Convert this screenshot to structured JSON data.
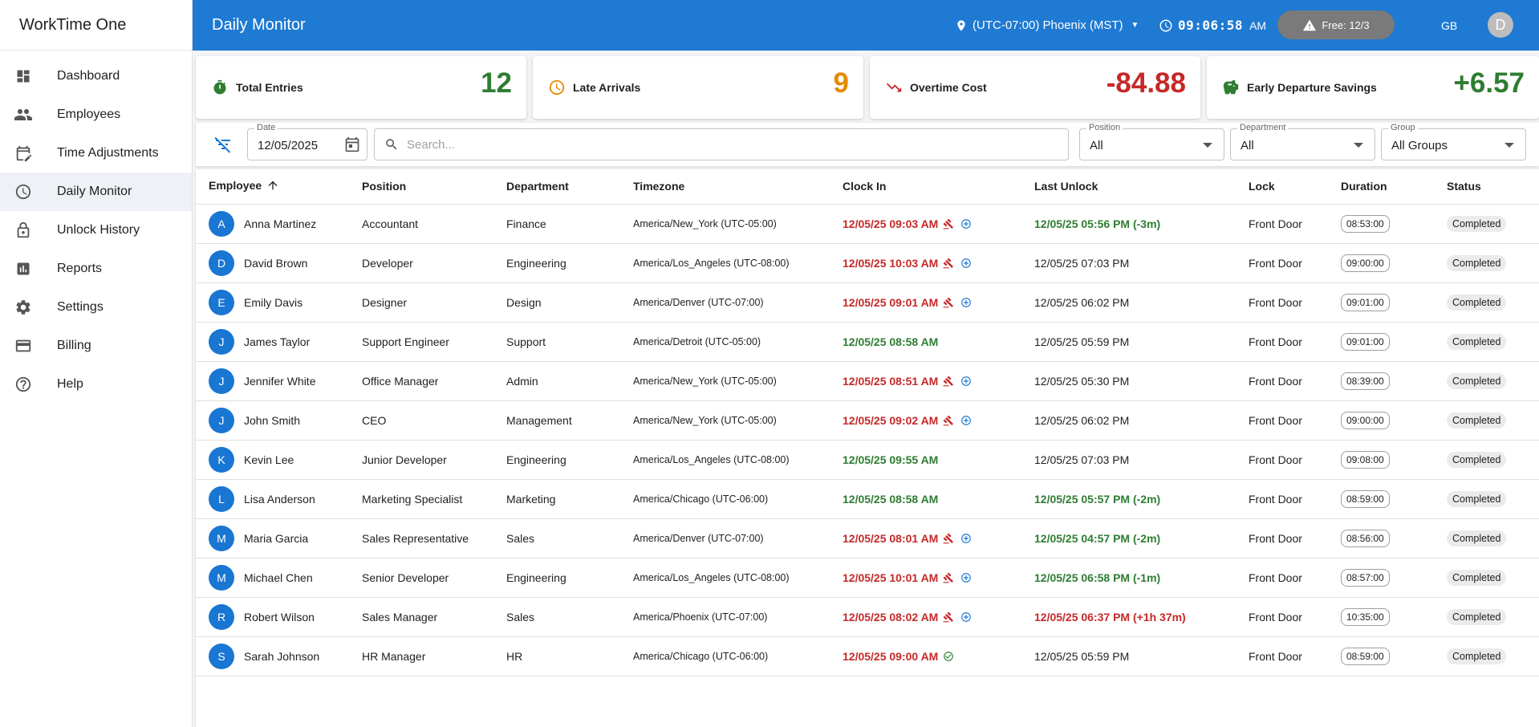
{
  "app": {
    "name": "WorkTime One"
  },
  "sidebar": {
    "items": [
      {
        "label": "Dashboard",
        "icon": "dashboard-icon"
      },
      {
        "label": "Employees",
        "icon": "people-icon"
      },
      {
        "label": "Time Adjustments",
        "icon": "edit-calendar-icon"
      },
      {
        "label": "Daily Monitor",
        "icon": "clock-icon"
      },
      {
        "label": "Unlock History",
        "icon": "lock-icon"
      },
      {
        "label": "Reports",
        "icon": "bar-chart-icon"
      },
      {
        "label": "Settings",
        "icon": "gear-icon"
      },
      {
        "label": "Billing",
        "icon": "credit-card-icon"
      },
      {
        "label": "Help",
        "icon": "help-icon"
      }
    ]
  },
  "header": {
    "title": "Daily Monitor",
    "timezone": "(UTC-07:00) Phoenix (MST)",
    "clock_time": "09:06:58",
    "clock_ampm": "AM",
    "plan_badge": "Free: 12/3",
    "user_initials": "GB",
    "avatar_letter": "D"
  },
  "stats": [
    {
      "label": "Total Entries",
      "value": "12",
      "color": "#2e7d32",
      "icon": "timer-icon"
    },
    {
      "label": "Late Arrivals",
      "value": "9",
      "color": "#e68a00",
      "icon": "clock-outline-icon"
    },
    {
      "label": "Overtime Cost",
      "value": "-84.88",
      "color": "#c62828",
      "icon": "trending-down-icon"
    },
    {
      "label": "Early Departure Savings",
      "value": "+6.57",
      "color": "#2e7d32",
      "icon": "piggy-bank-icon"
    }
  ],
  "filters": {
    "date_label": "Date",
    "date_value": "12/05/2025",
    "search_placeholder": "Search...",
    "position_label": "Position",
    "position_value": "All",
    "department_label": "Department",
    "department_value": "All",
    "group_label": "Group",
    "group_value": "All Groups"
  },
  "table": {
    "columns": [
      "Employee",
      "Position",
      "Department",
      "Timezone",
      "Clock In",
      "Last Unlock",
      "Lock",
      "Duration",
      "Status"
    ],
    "rows": [
      {
        "initial": "A",
        "name": "Anna Martinez",
        "position": "Accountant",
        "department": "Finance",
        "tz": "America/New_York",
        "tz_offset": "(UTC-05:00)",
        "clock_in": "12/05/25 09:03 AM",
        "clock_in_state": "late",
        "clock_in_icons": "gavel+add",
        "last_unlock": "12/05/25 05:56 PM (-3m)",
        "last_unlock_state": "early",
        "lock": "Front Door",
        "duration": "08:53:00",
        "status": "Completed"
      },
      {
        "initial": "D",
        "name": "David Brown",
        "position": "Developer",
        "department": "Engineering",
        "tz": "America/Los_Angeles",
        "tz_offset": "(UTC-08:00)",
        "clock_in": "12/05/25 10:03 AM",
        "clock_in_state": "late",
        "clock_in_icons": "gavel+add",
        "last_unlock": "12/05/25 07:03 PM",
        "last_unlock_state": "normal",
        "lock": "Front Door",
        "duration": "09:00:00",
        "status": "Completed"
      },
      {
        "initial": "E",
        "name": "Emily Davis",
        "position": "Designer",
        "department": "Design",
        "tz": "America/Denver",
        "tz_offset": "(UTC-07:00)",
        "clock_in": "12/05/25 09:01 AM",
        "clock_in_state": "late",
        "clock_in_icons": "gavel+add",
        "last_unlock": "12/05/25 06:02 PM",
        "last_unlock_state": "normal",
        "lock": "Front Door",
        "duration": "09:01:00",
        "status": "Completed"
      },
      {
        "initial": "J",
        "name": "James Taylor",
        "position": "Support Engineer",
        "department": "Support",
        "tz": "America/Detroit",
        "tz_offset": "(UTC-05:00)",
        "clock_in": "12/05/25 08:58 AM",
        "clock_in_state": "ontime",
        "clock_in_icons": "none",
        "last_unlock": "12/05/25 05:59 PM",
        "last_unlock_state": "normal",
        "lock": "Front Door",
        "duration": "09:01:00",
        "status": "Completed"
      },
      {
        "initial": "J",
        "name": "Jennifer White",
        "position": "Office Manager",
        "department": "Admin",
        "tz": "America/New_York",
        "tz_offset": "(UTC-05:00)",
        "clock_in": "12/05/25 08:51 AM",
        "clock_in_state": "late",
        "clock_in_icons": "gavel+add",
        "last_unlock": "12/05/25 05:30 PM",
        "last_unlock_state": "normal",
        "lock": "Front Door",
        "duration": "08:39:00",
        "status": "Completed"
      },
      {
        "initial": "J",
        "name": "John Smith",
        "position": "CEO",
        "department": "Management",
        "tz": "America/New_York",
        "tz_offset": "(UTC-05:00)",
        "clock_in": "12/05/25 09:02 AM",
        "clock_in_state": "late",
        "clock_in_icons": "gavel+add",
        "last_unlock": "12/05/25 06:02 PM",
        "last_unlock_state": "normal",
        "lock": "Front Door",
        "duration": "09:00:00",
        "status": "Completed"
      },
      {
        "initial": "K",
        "name": "Kevin Lee",
        "position": "Junior Developer",
        "department": "Engineering",
        "tz": "America/Los_Angeles",
        "tz_offset": "(UTC-08:00)",
        "clock_in": "12/05/25 09:55 AM",
        "clock_in_state": "ontime",
        "clock_in_icons": "none",
        "last_unlock": "12/05/25 07:03 PM",
        "last_unlock_state": "normal",
        "lock": "Front Door",
        "duration": "09:08:00",
        "status": "Completed"
      },
      {
        "initial": "L",
        "name": "Lisa Anderson",
        "position": "Marketing Specialist",
        "department": "Marketing",
        "tz": "America/Chicago",
        "tz_offset": "(UTC-06:00)",
        "clock_in": "12/05/25 08:58 AM",
        "clock_in_state": "ontime",
        "clock_in_icons": "none",
        "last_unlock": "12/05/25 05:57 PM (-2m)",
        "last_unlock_state": "early",
        "lock": "Front Door",
        "duration": "08:59:00",
        "status": "Completed"
      },
      {
        "initial": "M",
        "name": "Maria Garcia",
        "position": "Sales Representative",
        "department": "Sales",
        "tz": "America/Denver",
        "tz_offset": "(UTC-07:00)",
        "clock_in": "12/05/25 08:01 AM",
        "clock_in_state": "late",
        "clock_in_icons": "gavel+add",
        "last_unlock": "12/05/25 04:57 PM (-2m)",
        "last_unlock_state": "early",
        "lock": "Front Door",
        "duration": "08:56:00",
        "status": "Completed"
      },
      {
        "initial": "M",
        "name": "Michael Chen",
        "position": "Senior Developer",
        "department": "Engineering",
        "tz": "America/Los_Angeles",
        "tz_offset": "(UTC-08:00)",
        "clock_in": "12/05/25 10:01 AM",
        "clock_in_state": "late",
        "clock_in_icons": "gavel+add",
        "last_unlock": "12/05/25 06:58 PM (-1m)",
        "last_unlock_state": "early",
        "lock": "Front Door",
        "duration": "08:57:00",
        "status": "Completed"
      },
      {
        "initial": "R",
        "name": "Robert Wilson",
        "position": "Sales Manager",
        "department": "Sales",
        "tz": "America/Phoenix",
        "tz_offset": "(UTC-07:00)",
        "clock_in": "12/05/25 08:02 AM",
        "clock_in_state": "late",
        "clock_in_icons": "gavel+add",
        "last_unlock": "12/05/25 06:37 PM (+1h 37m)",
        "last_unlock_state": "overtime",
        "lock": "Front Door",
        "duration": "10:35:00",
        "status": "Completed"
      },
      {
        "initial": "S",
        "name": "Sarah Johnson",
        "position": "HR Manager",
        "department": "HR",
        "tz": "America/Chicago",
        "tz_offset": "(UTC-06:00)",
        "clock_in": "12/05/25 09:00 AM",
        "clock_in_state": "late",
        "clock_in_icons": "check",
        "last_unlock": "12/05/25 05:59 PM",
        "last_unlock_state": "normal",
        "lock": "Front Door",
        "duration": "08:59:00",
        "status": "Completed"
      }
    ]
  },
  "colors": {
    "header_bg": "#1e7ad3",
    "late": "#c62828",
    "ontime": "#2e7d32",
    "avatar": "#1976d2"
  }
}
